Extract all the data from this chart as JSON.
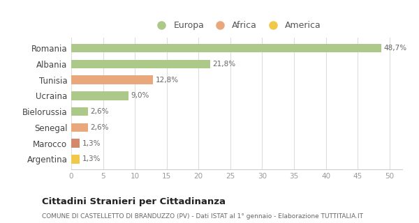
{
  "categories": [
    "Romania",
    "Albania",
    "Tunisia",
    "Ucraina",
    "Bielorussia",
    "Senegal",
    "Marocco",
    "Argentina"
  ],
  "values": [
    48.7,
    21.8,
    12.8,
    9.0,
    2.6,
    2.6,
    1.3,
    1.3
  ],
  "labels": [
    "48,7%",
    "21,8%",
    "12,8%",
    "9,0%",
    "2,6%",
    "2,6%",
    "1,3%",
    "1,3%"
  ],
  "colors": [
    "#adc98a",
    "#adc98a",
    "#e8a87c",
    "#adc98a",
    "#adc98a",
    "#e8a87c",
    "#d4896a",
    "#f0c84a"
  ],
  "legend": [
    {
      "label": "Europa",
      "color": "#adc98a"
    },
    {
      "label": "Africa",
      "color": "#e8a87c"
    },
    {
      "label": "America",
      "color": "#f0c84a"
    }
  ],
  "title": "Cittadini Stranieri per Cittadinanza",
  "subtitle": "COMUNE DI CASTELLETTO DI BRANDUZZO (PV) - Dati ISTAT al 1° gennaio - Elaborazione TUTTITALIA.IT",
  "xlim": [
    0,
    52
  ],
  "xticks": [
    0,
    5,
    10,
    15,
    20,
    25,
    30,
    35,
    40,
    45,
    50
  ],
  "background_color": "#ffffff",
  "grid_color": "#dddddd"
}
